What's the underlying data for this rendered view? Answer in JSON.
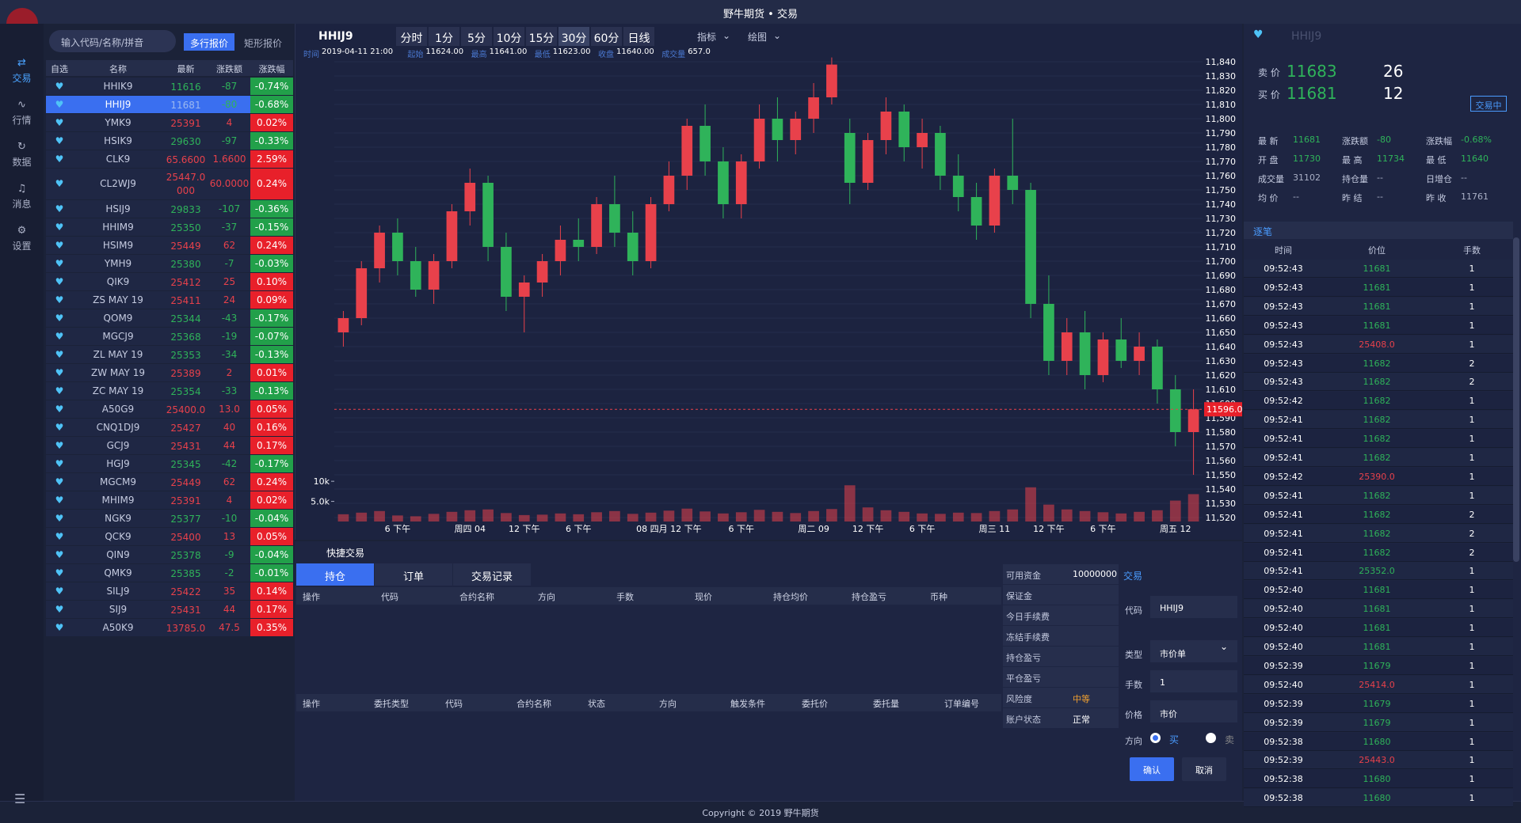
{
  "window": {
    "title": "野牛期货 • 交易"
  },
  "nav": [
    "交易",
    "行情",
    "数据",
    "消息",
    "设置"
  ],
  "watchlist": {
    "search_placeholder": "输入代码/名称/拼音",
    "tabs": [
      "多行报价",
      "矩形报价"
    ],
    "headers": [
      "自选",
      "名称",
      "最新",
      "涨跌额",
      "涨跌幅"
    ],
    "selected": 1,
    "rows": [
      [
        "HHIK9",
        "11616",
        "-87",
        "-0.74%"
      ],
      [
        "HHIJ9",
        "11681",
        "-80",
        "-0.68%"
      ],
      [
        "YMK9",
        "25391",
        "4",
        "0.02%"
      ],
      [
        "HSIK9",
        "29630",
        "-97",
        "-0.33%"
      ],
      [
        "CLK9",
        "65.6600",
        "1.6600",
        "2.59%"
      ],
      [
        "CL2WJ9",
        "25447.0000",
        "60.0000",
        "0.24%"
      ],
      [
        "HSIJ9",
        "29833",
        "-107",
        "-0.36%"
      ],
      [
        "HHIM9",
        "25350",
        "-37",
        "-0.15%"
      ],
      [
        "HSIM9",
        "25449",
        "62",
        "0.24%"
      ],
      [
        "YMH9",
        "25380",
        "-7",
        "-0.03%"
      ],
      [
        "QIK9",
        "25412",
        "25",
        "0.10%"
      ],
      [
        "ZS MAY 19",
        "25411",
        "24",
        "0.09%"
      ],
      [
        "QOM9",
        "25344",
        "-43",
        "-0.17%"
      ],
      [
        "MGCJ9",
        "25368",
        "-19",
        "-0.07%"
      ],
      [
        "ZL MAY 19",
        "25353",
        "-34",
        "-0.13%"
      ],
      [
        "ZW MAY 19",
        "25389",
        "2",
        "0.01%"
      ],
      [
        "ZC MAY 19",
        "25354",
        "-33",
        "-0.13%"
      ],
      [
        "A50G9",
        "25400.0",
        "13.0",
        "0.05%"
      ],
      [
        "CNQ1DJ9",
        "25427",
        "40",
        "0.16%"
      ],
      [
        "GCJ9",
        "25431",
        "44",
        "0.17%"
      ],
      [
        "HGJ9",
        "25345",
        "-42",
        "-0.17%"
      ],
      [
        "MGCM9",
        "25449",
        "62",
        "0.24%"
      ],
      [
        "MHIM9",
        "25391",
        "4",
        "0.02%"
      ],
      [
        "NGK9",
        "25377",
        "-10",
        "-0.04%"
      ],
      [
        "QCK9",
        "25400",
        "13",
        "0.05%"
      ],
      [
        "QIN9",
        "25378",
        "-9",
        "-0.04%"
      ],
      [
        "QMK9",
        "25385",
        "-2",
        "-0.01%"
      ],
      [
        "SILJ9",
        "25422",
        "35",
        "0.14%"
      ],
      [
        "SIJ9",
        "25431",
        "44",
        "0.17%"
      ],
      [
        "A50K9",
        "13785.0",
        "47.5",
        "0.35%"
      ]
    ]
  },
  "chart_toolbar": {
    "symbol": "HHIJ9",
    "periods": [
      "分时",
      "1分",
      "5分",
      "10分",
      "15分",
      "30分",
      "60分",
      "日线"
    ],
    "active_period": 5,
    "indicator": "指标",
    "draw": "绘图"
  },
  "chart_info": [
    {
      "label": "时间",
      "value": "2019-04-11 21:00"
    },
    {
      "label": "起始",
      "value": "11624.00"
    },
    {
      "label": "最高",
      "value": "11641.00"
    },
    {
      "label": "最低",
      "value": "11623.00"
    },
    {
      "label": "收盘",
      "value": "11640.00"
    },
    {
      "label": "成交量",
      "value": "657.0"
    }
  ],
  "chart_data": {
    "type": "candlestick",
    "up_color": "#e8414b",
    "down_color": "#2fb35a",
    "volume_color": "#e8414b",
    "grid": true,
    "categories": [
      null,
      null,
      null,
      "6 下午",
      null,
      null,
      null,
      "周四 04",
      null,
      null,
      "12 下午",
      null,
      null,
      "6 下午",
      null,
      null,
      null,
      null,
      "08 四月 12 下午",
      null,
      null,
      null,
      "6 下午",
      null,
      null,
      null,
      "周二 09",
      null,
      null,
      "12 下午",
      null,
      null,
      "6 下午",
      null,
      null,
      null,
      "周三 11",
      null,
      null,
      "12 下午",
      null,
      null,
      "6 下午",
      null,
      null,
      null,
      "周五 12",
      null
    ],
    "candles": [
      [
        11650,
        11665,
        11640,
        11660
      ],
      [
        11660,
        11700,
        11655,
        11695
      ],
      [
        11695,
        11725,
        11685,
        11720
      ],
      [
        11720,
        11730,
        11690,
        11700
      ],
      [
        11700,
        11710,
        11675,
        11680
      ],
      [
        11680,
        11705,
        11670,
        11700
      ],
      [
        11700,
        11740,
        11695,
        11735
      ],
      [
        11735,
        11765,
        11725,
        11755
      ],
      [
        11755,
        11760,
        11700,
        11710
      ],
      [
        11710,
        11720,
        11665,
        11675
      ],
      [
        11675,
        11690,
        11650,
        11685
      ],
      [
        11685,
        11705,
        11675,
        11700
      ],
      [
        11700,
        11725,
        11690,
        11715
      ],
      [
        11715,
        11730,
        11700,
        11710
      ],
      [
        11710,
        11745,
        11705,
        11740
      ],
      [
        11740,
        11760,
        11710,
        11720
      ],
      [
        11720,
        11735,
        11690,
        11700
      ],
      [
        11700,
        11745,
        11695,
        11740
      ],
      [
        11740,
        11770,
        11735,
        11760
      ],
      [
        11760,
        11800,
        11750,
        11795
      ],
      [
        11795,
        11810,
        11760,
        11770
      ],
      [
        11770,
        11780,
        11730,
        11740
      ],
      [
        11740,
        11775,
        11730,
        11770
      ],
      [
        11770,
        11810,
        11765,
        11800
      ],
      [
        11800,
        11815,
        11770,
        11785
      ],
      [
        11785,
        11805,
        11775,
        11800
      ],
      [
        11800,
        11825,
        11790,
        11815
      ],
      [
        11815,
        11843,
        11810,
        11838
      ],
      [
        11790,
        11800,
        11740,
        11755
      ],
      [
        11755,
        11790,
        11750,
        11785
      ],
      [
        11785,
        11815,
        11775,
        11805
      ],
      [
        11805,
        11810,
        11770,
        11780
      ],
      [
        11780,
        11800,
        11765,
        11790
      ],
      [
        11790,
        11795,
        11750,
        11760
      ],
      [
        11760,
        11775,
        11735,
        11745
      ],
      [
        11745,
        11755,
        11715,
        11725
      ],
      [
        11725,
        11765,
        11720,
        11760
      ],
      [
        11760,
        11800,
        11740,
        11750
      ],
      [
        11750,
        11755,
        11660,
        11670
      ],
      [
        11670,
        11690,
        11620,
        11630
      ],
      [
        11630,
        11660,
        11620,
        11650
      ],
      [
        11650,
        11665,
        11610,
        11620
      ],
      [
        11620,
        11650,
        11615,
        11645
      ],
      [
        11645,
        11660,
        11625,
        11630
      ],
      [
        11630,
        11650,
        11620,
        11640
      ],
      [
        11640,
        11645,
        11600,
        11610
      ],
      [
        11610,
        11620,
        11570,
        11580
      ],
      [
        11580,
        11610,
        11550,
        11596
      ]
    ],
    "volumes": [
      1800,
      2200,
      2600,
      1500,
      1300,
      1900,
      2400,
      2800,
      3000,
      2100,
      1600,
      1700,
      2000,
      1800,
      2300,
      2600,
      1900,
      2200,
      2700,
      3200,
      2500,
      2000,
      2300,
      2900,
      2400,
      2100,
      2600,
      3100,
      9000,
      3500,
      2800,
      2400,
      2000,
      1900,
      2200,
      2100,
      2600,
      3000,
      8500,
      4200,
      3000,
      2600,
      2300,
      2000,
      2400,
      2800,
      5200,
      6800
    ],
    "ylim": [
      11520,
      11840
    ],
    "yticks": [
      {
        "value": 11520,
        "label": "11,520"
      },
      {
        "value": 11530,
        "label": "11,530"
      },
      {
        "value": 11540,
        "label": "11,540"
      },
      {
        "value": 11550,
        "label": "11,550"
      },
      {
        "value": 11560,
        "label": "11,560"
      },
      {
        "value": 11570,
        "label": "11,570"
      },
      {
        "value": 11580,
        "label": "11,580"
      },
      {
        "value": 11590,
        "label": "11,590"
      },
      {
        "value": 11600,
        "label": "11,600"
      },
      {
        "value": 11610,
        "label": "11,610"
      },
      {
        "value": 11620,
        "label": "11,620"
      },
      {
        "value": 11630,
        "label": "11,630"
      },
      {
        "value": 11640,
        "label": "11,640"
      },
      {
        "value": 11650,
        "label": "11,650"
      },
      {
        "value": 11660,
        "label": "11,660"
      },
      {
        "value": 11670,
        "label": "11,670"
      },
      {
        "value": 11680,
        "label": "11,680"
      },
      {
        "value": 11690,
        "label": "11,690"
      },
      {
        "value": 11700,
        "label": "11,700"
      },
      {
        "value": 11710,
        "label": "11,710"
      },
      {
        "value": 11720,
        "label": "11,720"
      },
      {
        "value": 11730,
        "label": "11,730"
      },
      {
        "value": 11740,
        "label": "11,740"
      },
      {
        "value": 11750,
        "label": "11,750"
      },
      {
        "value": 11760,
        "label": "11,760"
      },
      {
        "value": 11770,
        "label": "11,770"
      },
      {
        "value": 11780,
        "label": "11,780"
      },
      {
        "value": 11790,
        "label": "11,790"
      },
      {
        "value": 11800,
        "label": "11,800"
      },
      {
        "value": 11810,
        "label": "11,810"
      },
      {
        "value": 11820,
        "label": "11,820"
      },
      {
        "value": 11830,
        "label": "11,830"
      },
      {
        "value": 11840,
        "label": "11,840"
      }
    ],
    "volume_ylim": [
      0,
      12000
    ],
    "volume_yticks": [
      {
        "value": 10000,
        "label": "10k"
      },
      {
        "value": 5000,
        "label": "5.0k"
      }
    ],
    "last_price": {
      "value": 11596,
      "label": "11596.0"
    }
  },
  "trade_panel": {
    "title": "快捷交易",
    "tabs": [
      "持仓",
      "订单",
      "交易记录"
    ],
    "active_tab": 0,
    "position_headers": [
      "操作",
      "代码",
      "合约名称",
      "方向",
      "手数",
      "现价",
      "持仓均价",
      "持仓盈亏",
      "币种"
    ],
    "order_headers": [
      "操作",
      "委托类型",
      "代码",
      "合约名称",
      "状态",
      "方向",
      "触发条件",
      "委托价",
      "委托量",
      "订单编号"
    ]
  },
  "account": [
    {
      "label": "可用资金",
      "value": "10000000",
      "color": "#ffffff"
    },
    {
      "label": "保证金"
    },
    {
      "label": "今日手续费"
    },
    {
      "label": "冻结手续费"
    },
    {
      "label": "持仓盈亏"
    },
    {
      "label": "平仓盈亏"
    },
    {
      "label": "风险度",
      "value": "中等",
      "color": "#f0a030"
    },
    {
      "label": "账户状态",
      "value": "正常",
      "color": "#ffffff"
    }
  ],
  "order_form": {
    "title": "交易",
    "code_label": "代码",
    "code": "HHIJ9",
    "type_label": "类型",
    "type": "市价单",
    "qty_label": "手数",
    "qty": "1",
    "price_label": "价格",
    "price": "市价",
    "side_label": "方向",
    "buy": "买",
    "sell": "卖",
    "confirm": "确认",
    "cancel": "取消"
  },
  "quote": {
    "symbol": "HHIJ9",
    "sell": {
      "label": "卖 价",
      "price": "11683",
      "volume": "26"
    },
    "buy": {
      "label": "买 价",
      "price": "11681",
      "volume": "12"
    },
    "status": "交易中",
    "stats": [
      {
        "label": "最 新",
        "value": "11681",
        "color": "#2fb35a"
      },
      {
        "label": "涨跌额",
        "value": "-80",
        "color": "#2fb35a"
      },
      {
        "label": "涨跌幅",
        "value": "-0.68%",
        "color": "#2fb35a"
      },
      {
        "label": "开 盘",
        "value": "11730",
        "color": "#2fb35a"
      },
      {
        "label": "最 高",
        "value": "11734",
        "color": "#2fb35a"
      },
      {
        "label": "最 低",
        "value": "11640",
        "color": "#2fb35a"
      },
      {
        "label": "成交量",
        "value": "31102",
        "color": "#aab0c6"
      },
      {
        "label": "持仓量",
        "value": "--",
        "color": "#aab0c6"
      },
      {
        "label": "日增仓",
        "value": "--",
        "color": "#aab0c6"
      },
      {
        "label": "均 价",
        "value": "--",
        "color": "#aab0c6"
      },
      {
        "label": "昨 结",
        "value": "--",
        "color": "#aab0c6"
      },
      {
        "label": "昨 收",
        "value": "11761",
        "color": "#aab0c6"
      }
    ]
  },
  "ticks": {
    "title": "逐笔",
    "headers": [
      "时间",
      "价位",
      "手数"
    ],
    "rows": [
      {
        "time": "09:52:43",
        "price": "11681",
        "qty": "1",
        "color": "#2fb35a"
      },
      {
        "time": "09:52:43",
        "price": "11681",
        "qty": "1",
        "color": "#2fb35a"
      },
      {
        "time": "09:52:43",
        "price": "11681",
        "qty": "1",
        "color": "#2fb35a"
      },
      {
        "time": "09:52:43",
        "price": "11681",
        "qty": "1",
        "color": "#2fb35a"
      },
      {
        "time": "09:52:43",
        "price": "25408.0",
        "qty": "1",
        "color": "#e8414b"
      },
      {
        "time": "09:52:43",
        "price": "11682",
        "qty": "2",
        "color": "#2fb35a"
      },
      {
        "time": "09:52:43",
        "price": "11682",
        "qty": "2",
        "color": "#2fb35a"
      },
      {
        "time": "09:52:42",
        "price": "11682",
        "qty": "1",
        "color": "#2fb35a"
      },
      {
        "time": "09:52:41",
        "price": "11682",
        "qty": "1",
        "color": "#2fb35a"
      },
      {
        "time": "09:52:41",
        "price": "11682",
        "qty": "1",
        "color": "#2fb35a"
      },
      {
        "time": "09:52:41",
        "price": "11682",
        "qty": "1",
        "color": "#2fb35a"
      },
      {
        "time": "09:52:42",
        "price": "25390.0",
        "qty": "1",
        "color": "#e8414b"
      },
      {
        "time": "09:52:41",
        "price": "11682",
        "qty": "1",
        "color": "#2fb35a"
      },
      {
        "time": "09:52:41",
        "price": "11682",
        "qty": "2",
        "color": "#2fb35a"
      },
      {
        "time": "09:52:41",
        "price": "11682",
        "qty": "2",
        "color": "#2fb35a"
      },
      {
        "time": "09:52:41",
        "price": "11682",
        "qty": "2",
        "color": "#2fb35a"
      },
      {
        "time": "09:52:41",
        "price": "25352.0",
        "qty": "1",
        "color": "#2fb35a"
      },
      {
        "time": "09:52:40",
        "price": "11681",
        "qty": "1",
        "color": "#2fb35a"
      },
      {
        "time": "09:52:40",
        "price": "11681",
        "qty": "1",
        "color": "#2fb35a"
      },
      {
        "time": "09:52:40",
        "price": "11681",
        "qty": "1",
        "color": "#2fb35a"
      },
      {
        "time": "09:52:40",
        "price": "11681",
        "qty": "1",
        "color": "#2fb35a"
      },
      {
        "time": "09:52:39",
        "price": "11679",
        "qty": "1",
        "color": "#2fb35a"
      },
      {
        "time": "09:52:40",
        "price": "25414.0",
        "qty": "1",
        "color": "#e8414b"
      },
      {
        "time": "09:52:39",
        "price": "11679",
        "qty": "1",
        "color": "#2fb35a"
      },
      {
        "time": "09:52:39",
        "price": "11679",
        "qty": "1",
        "color": "#2fb35a"
      },
      {
        "time": "09:52:38",
        "price": "11680",
        "qty": "1",
        "color": "#2fb35a"
      },
      {
        "time": "09:52:39",
        "price": "25443.0",
        "qty": "1",
        "color": "#e8414b"
      },
      {
        "time": "09:52:38",
        "price": "11680",
        "qty": "1",
        "color": "#2fb35a"
      },
      {
        "time": "09:52:38",
        "price": "11680",
        "qty": "1",
        "color": "#2fb35a"
      }
    ]
  },
  "footer": "Copyright © 2019 野牛期货"
}
